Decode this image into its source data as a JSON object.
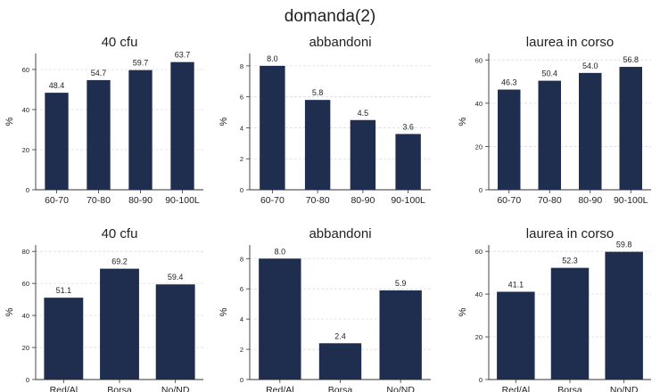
{
  "figure": {
    "title": "domanda(2)"
  },
  "style": {
    "bar_color": "#1f2d4e",
    "grid_color": "#dcdcdc",
    "axis_color": "#333333",
    "text_color": "#222222"
  },
  "chart_data": [
    {
      "type": "bar",
      "title": "40 cfu",
      "ylabel": "%",
      "xlabel": "",
      "categories": [
        "60-70",
        "70-80",
        "80-90",
        "90-100L"
      ],
      "values": [
        48.4,
        54.7,
        59.7,
        63.7
      ],
      "value_labels": [
        "48.4",
        "54.7",
        "59.7",
        "63.7"
      ],
      "ylim": [
        0,
        68
      ],
      "yticks": [
        0,
        20,
        40,
        60
      ],
      "grid": true
    },
    {
      "type": "bar",
      "title": "abbandoni",
      "ylabel": "%",
      "xlabel": "",
      "categories": [
        "60-70",
        "70-80",
        "80-90",
        "90-100L"
      ],
      "values": [
        8.0,
        5.8,
        4.5,
        3.6
      ],
      "value_labels": [
        "8.0",
        "5.8",
        "4.5",
        "3.6"
      ],
      "ylim": [
        0,
        8.8
      ],
      "yticks": [
        0,
        2,
        4,
        6,
        8
      ],
      "grid": true
    },
    {
      "type": "bar",
      "title": "laurea in corso",
      "ylabel": "%",
      "xlabel": "",
      "categories": [
        "60-70",
        "70-80",
        "80-90",
        "90-100L"
      ],
      "values": [
        46.3,
        50.4,
        54.0,
        56.8
      ],
      "value_labels": [
        "46.3",
        "50.4",
        "54.0",
        "56.8"
      ],
      "ylim": [
        0,
        63
      ],
      "yticks": [
        0,
        20,
        40,
        60
      ],
      "grid": true
    },
    {
      "type": "bar",
      "title": "40 cfu",
      "ylabel": "%",
      "xlabel": "",
      "categories": [
        "Red/Al",
        "Borsa",
        "No/ND"
      ],
      "values": [
        51.1,
        69.2,
        59.4
      ],
      "value_labels": [
        "51.1",
        "69.2",
        "59.4"
      ],
      "ylim": [
        0,
        84
      ],
      "yticks": [
        0,
        20,
        40,
        60,
        80
      ],
      "grid": true
    },
    {
      "type": "bar",
      "title": "abbandoni",
      "ylabel": "%",
      "xlabel": "",
      "categories": [
        "Red/Al",
        "Borsa",
        "No/ND"
      ],
      "values": [
        8.0,
        2.4,
        5.9
      ],
      "value_labels": [
        "8.0",
        "2.4",
        "5.9"
      ],
      "ylim": [
        0,
        8.9
      ],
      "yticks": [
        0,
        2,
        4,
        6,
        8
      ],
      "grid": true
    },
    {
      "type": "bar",
      "title": "laurea in corso",
      "ylabel": "%",
      "xlabel": "",
      "categories": [
        "Red/Al",
        "Borsa",
        "No/ND"
      ],
      "values": [
        41.1,
        52.3,
        59.8
      ],
      "value_labels": [
        "41.1",
        "52.3",
        "59.8"
      ],
      "ylim": [
        0,
        63
      ],
      "yticks": [
        0,
        20,
        40,
        60
      ],
      "grid": true
    }
  ]
}
